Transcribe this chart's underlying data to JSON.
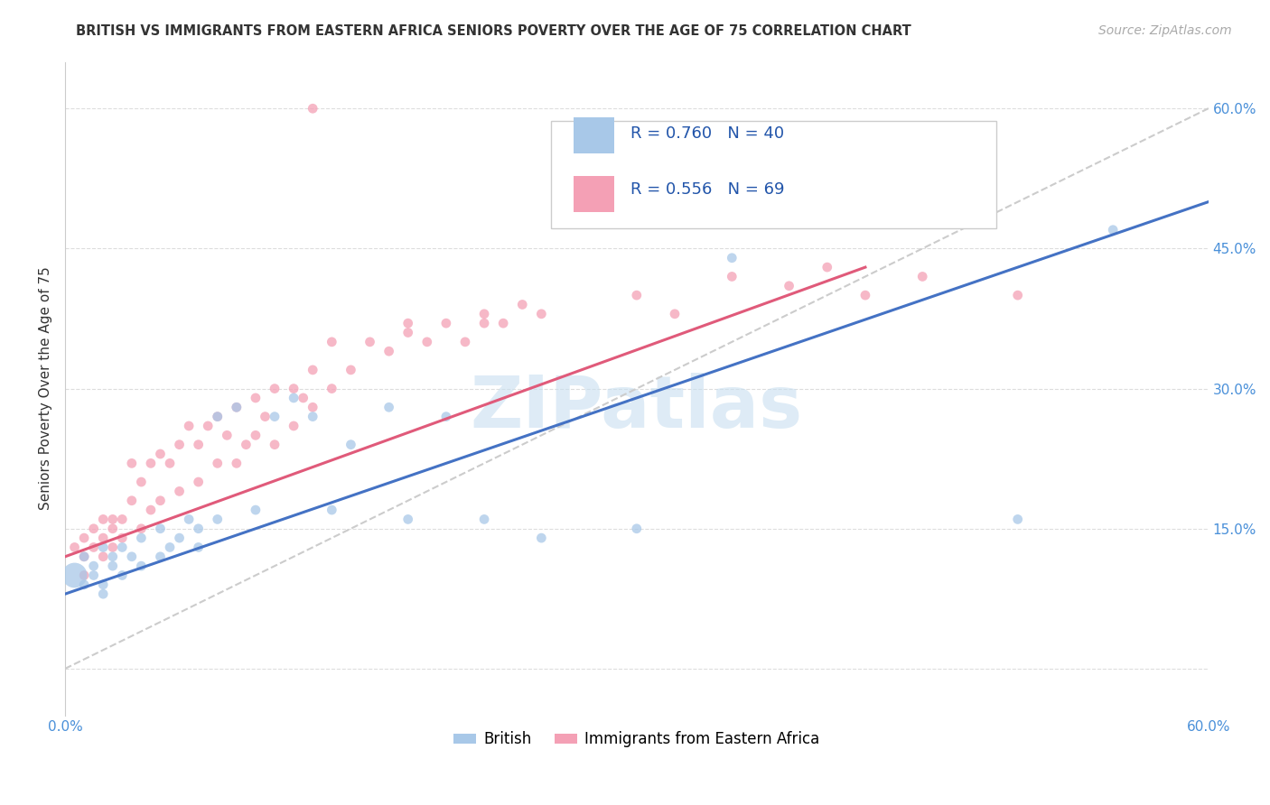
{
  "title": "BRITISH VS IMMIGRANTS FROM EASTERN AFRICA SENIORS POVERTY OVER THE AGE OF 75 CORRELATION CHART",
  "source": "Source: ZipAtlas.com",
  "ylabel": "Seniors Poverty Over the Age of 75",
  "xlim": [
    0.0,
    0.6
  ],
  "ylim": [
    -0.05,
    0.65
  ],
  "watermark": "ZIPatlas",
  "legend_british_R": "0.760",
  "legend_british_N": "40",
  "legend_eastern_R": "0.556",
  "legend_eastern_N": "69",
  "british_color": "#a8c8e8",
  "eastern_color": "#f4a0b5",
  "british_line_color": "#4472c4",
  "eastern_line_color": "#e05a7a",
  "diagonal_color": "#cccccc",
  "tick_color": "#4a90d9",
  "british_x": [
    0.005,
    0.01,
    0.01,
    0.015,
    0.015,
    0.02,
    0.02,
    0.02,
    0.025,
    0.025,
    0.03,
    0.03,
    0.035,
    0.04,
    0.04,
    0.05,
    0.05,
    0.055,
    0.06,
    0.065,
    0.07,
    0.07,
    0.08,
    0.08,
    0.09,
    0.1,
    0.11,
    0.12,
    0.13,
    0.14,
    0.15,
    0.17,
    0.18,
    0.2,
    0.22,
    0.25,
    0.3,
    0.35,
    0.5,
    0.55
  ],
  "british_y": [
    0.1,
    0.09,
    0.12,
    0.1,
    0.11,
    0.08,
    0.09,
    0.13,
    0.11,
    0.12,
    0.1,
    0.13,
    0.12,
    0.11,
    0.14,
    0.12,
    0.15,
    0.13,
    0.14,
    0.16,
    0.13,
    0.15,
    0.27,
    0.16,
    0.28,
    0.17,
    0.27,
    0.29,
    0.27,
    0.17,
    0.24,
    0.28,
    0.16,
    0.27,
    0.16,
    0.14,
    0.15,
    0.44,
    0.16,
    0.47
  ],
  "british_sizes": [
    400,
    60,
    60,
    60,
    60,
    60,
    60,
    60,
    60,
    60,
    60,
    60,
    60,
    60,
    60,
    60,
    60,
    60,
    60,
    60,
    60,
    60,
    60,
    60,
    60,
    60,
    60,
    60,
    60,
    60,
    60,
    60,
    60,
    60,
    60,
    60,
    60,
    60,
    60,
    60
  ],
  "eastern_x": [
    0.005,
    0.01,
    0.01,
    0.01,
    0.015,
    0.015,
    0.02,
    0.02,
    0.02,
    0.025,
    0.025,
    0.025,
    0.03,
    0.03,
    0.035,
    0.035,
    0.04,
    0.04,
    0.045,
    0.045,
    0.05,
    0.05,
    0.055,
    0.06,
    0.06,
    0.065,
    0.07,
    0.07,
    0.075,
    0.08,
    0.08,
    0.085,
    0.09,
    0.09,
    0.095,
    0.1,
    0.1,
    0.105,
    0.11,
    0.11,
    0.12,
    0.12,
    0.125,
    0.13,
    0.13,
    0.14,
    0.14,
    0.15,
    0.16,
    0.17,
    0.18,
    0.19,
    0.2,
    0.21,
    0.22,
    0.23,
    0.24,
    0.25,
    0.3,
    0.32,
    0.35,
    0.38,
    0.4,
    0.42,
    0.45,
    0.5,
    0.13,
    0.18,
    0.22
  ],
  "eastern_y": [
    0.13,
    0.12,
    0.14,
    0.1,
    0.13,
    0.15,
    0.12,
    0.14,
    0.16,
    0.13,
    0.15,
    0.16,
    0.14,
    0.16,
    0.18,
    0.22,
    0.15,
    0.2,
    0.17,
    0.22,
    0.18,
    0.23,
    0.22,
    0.19,
    0.24,
    0.26,
    0.2,
    0.24,
    0.26,
    0.22,
    0.27,
    0.25,
    0.22,
    0.28,
    0.24,
    0.25,
    0.29,
    0.27,
    0.24,
    0.3,
    0.26,
    0.3,
    0.29,
    0.28,
    0.32,
    0.3,
    0.35,
    0.32,
    0.35,
    0.34,
    0.36,
    0.35,
    0.37,
    0.35,
    0.38,
    0.37,
    0.39,
    0.38,
    0.4,
    0.38,
    0.42,
    0.41,
    0.43,
    0.4,
    0.42,
    0.4,
    0.6,
    0.37,
    0.37
  ],
  "eastern_sizes": [
    60,
    60,
    60,
    60,
    60,
    60,
    60,
    60,
    60,
    60,
    60,
    60,
    60,
    60,
    60,
    60,
    60,
    60,
    60,
    60,
    60,
    60,
    60,
    60,
    60,
    60,
    60,
    60,
    60,
    60,
    60,
    60,
    60,
    60,
    60,
    60,
    60,
    60,
    60,
    60,
    60,
    60,
    60,
    60,
    60,
    60,
    60,
    60,
    60,
    60,
    60,
    60,
    60,
    60,
    60,
    60,
    60,
    60,
    60,
    60,
    60,
    60,
    60,
    60,
    60,
    60,
    60,
    60,
    60
  ],
  "british_line_x": [
    0.0,
    0.6
  ],
  "british_line_y": [
    0.08,
    0.5
  ],
  "eastern_line_x": [
    0.0,
    0.42
  ],
  "eastern_line_y": [
    0.12,
    0.43
  ]
}
